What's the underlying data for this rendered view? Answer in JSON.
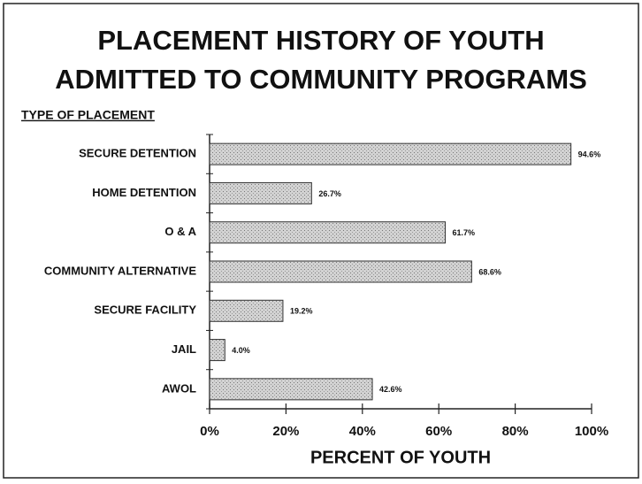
{
  "chart_data": {
    "type": "bar",
    "orientation": "horizontal",
    "title": [
      "PLACEMENT HISTORY OF YOUTH",
      "ADMITTED TO COMMUNITY PROGRAMS"
    ],
    "y_label": "TYPE OF PLACEMENT",
    "x_label": "PERCENT OF YOUTH",
    "categories": [
      "SECURE DETENTION",
      "HOME DETENTION",
      "O & A",
      "COMMUNITY ALTERNATIVE",
      "SECURE FACILITY",
      "JAIL",
      "AWOL"
    ],
    "values": [
      94.6,
      26.7,
      61.7,
      68.6,
      19.2,
      4.0,
      42.6
    ],
    "value_labels": [
      "94.6%",
      "26.7%",
      "61.7%",
      "68.6%",
      "19.2%",
      "4.0%",
      "42.6%"
    ],
    "color": "#c4c4c4",
    "xlim": [
      0,
      100
    ],
    "xticks": [
      {
        "value": 0,
        "label": "0%"
      },
      {
        "value": 20,
        "label": "20%"
      },
      {
        "value": 40,
        "label": "40%"
      },
      {
        "value": 60,
        "label": "60%"
      },
      {
        "value": 80,
        "label": "80%"
      },
      {
        "value": 100,
        "label": "100%"
      }
    ]
  }
}
